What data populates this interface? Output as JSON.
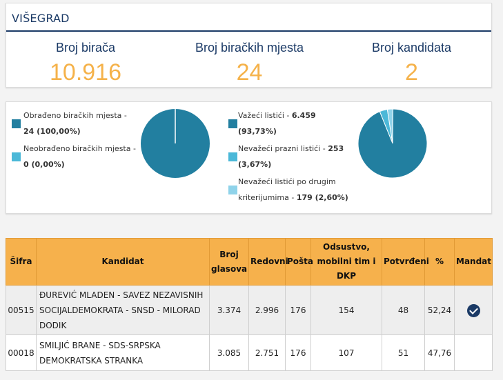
{
  "header": {
    "title": "VIŠEGRAD",
    "stats": [
      {
        "label": "Broj birača",
        "value": "10.916"
      },
      {
        "label": "Broj biračkih mjesta",
        "value": "24"
      },
      {
        "label": "Broj kandidata",
        "value": "2"
      }
    ]
  },
  "colors": {
    "navy": "#1b3a66",
    "orange": "#f5b24a",
    "teal": "#227fa0",
    "light_blue": "#4bb8d8",
    "pale_blue": "#8fd3ea"
  },
  "polling": {
    "legend": [
      {
        "label": "Obrađeno biračkih mjesta - ",
        "value_line": "24 (100,00%)",
        "color": "#227fa0"
      },
      {
        "label": "Neobrađeno biračkih mjesta - ",
        "value_line": "0 (0,00%)",
        "color": "#4bb8d8"
      }
    ],
    "slices": [
      100,
      0
    ]
  },
  "ballots": {
    "legend": [
      {
        "label": "Važeći listići - ",
        "value_inline": "6.459",
        "value_line": "(93,73%)",
        "color": "#227fa0"
      },
      {
        "label": "Nevažeći prazni listići - ",
        "value_inline": "253",
        "value_line": "(3,67%)",
        "color": "#4bb8d8"
      },
      {
        "label": "Nevažeći listići po drugim",
        "value_prefix": "kriterijumima - ",
        "value_line": "179 (2,60%)",
        "color": "#8fd3ea"
      }
    ],
    "slices": [
      93.73,
      3.67,
      2.6
    ]
  },
  "table": {
    "headers": {
      "sifra": "Šifra",
      "kandidat": "Kandidat",
      "broj_glasova": [
        "Broj",
        "glasova"
      ],
      "redovni": "Redovni",
      "posta": "Pošta",
      "odsustvo": [
        "Odsustvo,",
        "mobilni tim i",
        "DKP"
      ],
      "potvrdeni": "Potvrđeni",
      "procenat": "%",
      "mandat": "Mandat"
    },
    "rows": [
      {
        "sifra": "00515",
        "kandidat": [
          "ĐUREVIĆ MLADEN - SAVEZ NEZAVISNIH",
          "SOCIJALDEMOKRATA - SNSD - MILORAD",
          "DODIK"
        ],
        "glasova": "3.374",
        "redovni": "2.996",
        "posta": "176",
        "odsustvo": "154",
        "potvrdeni": "48",
        "procenat": "52,24",
        "mandat": true
      },
      {
        "sifra": "00018",
        "kandidat": [
          "SMILJIĆ BRANE - SDS-SRPSKA",
          "DEMOKRATSKA STRANKA"
        ],
        "glasova": "3.085",
        "redovni": "2.751",
        "posta": "176",
        "odsustvo": "107",
        "potvrdeni": "51",
        "procenat": "47,76",
        "mandat": false
      }
    ]
  }
}
